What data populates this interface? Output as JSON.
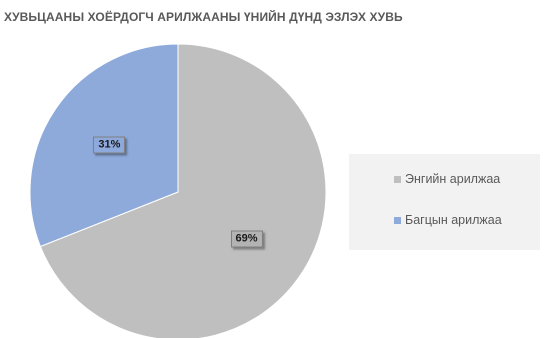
{
  "chart_data": {
    "type": "pie",
    "title": "ХУВЬЦААНЫ ХОЁРДОГЧ АРИЛЖААНЫ ҮНИЙН ДҮНД ЭЗЛЭХ ХУВЬ",
    "slices": [
      {
        "name": "Энгийн арилжаа",
        "value": 69,
        "label": "69%",
        "color": "#bfbfbf",
        "label_bg": "#b3b3b3"
      },
      {
        "name": "Багцын арилжаа",
        "value": 31,
        "label": "31%",
        "color": "#8eaadb",
        "label_bg": "#8ea9db"
      }
    ],
    "legend_position": "right",
    "start_angle": "12 o'clock, clockwise"
  }
}
